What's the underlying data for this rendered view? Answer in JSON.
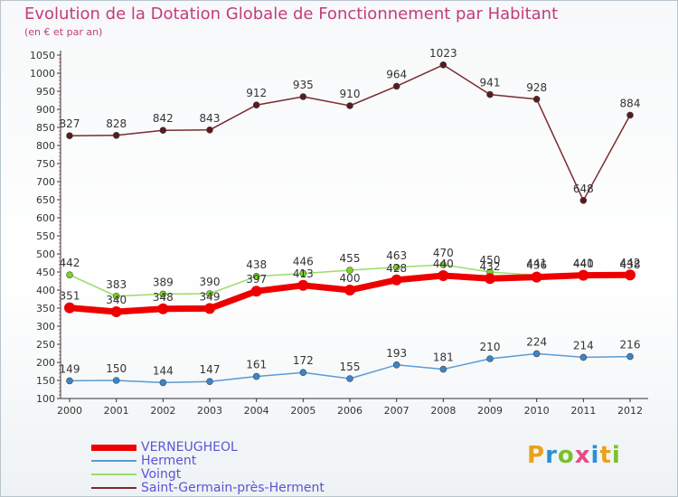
{
  "title": "Evolution de la Dotation Globale de Fonctionnement par Habitant",
  "subtitle": "(en € et par an)",
  "chart_data": {
    "type": "line",
    "x": [
      "2000",
      "2001",
      "2002",
      "2003",
      "2004",
      "2005",
      "2006",
      "2007",
      "2008",
      "2009",
      "2010",
      "2011",
      "2012"
    ],
    "ylim": [
      100,
      1050
    ],
    "yticks": [
      100,
      150,
      200,
      250,
      300,
      350,
      400,
      450,
      500,
      550,
      600,
      650,
      700,
      750,
      800,
      850,
      900,
      950,
      1000,
      1050
    ],
    "grid": false,
    "legend_position": "bottom-left",
    "series": [
      {
        "name": "VERNEUGHEOL",
        "color": "#ee0000",
        "values": [
          351,
          340,
          348,
          349,
          397,
          413,
          400,
          428,
          440,
          432,
          436,
          441,
          442
        ]
      },
      {
        "name": "Herment",
        "color": "#5b9bd5",
        "values": [
          149,
          150,
          144,
          147,
          161,
          172,
          155,
          193,
          181,
          210,
          224,
          214,
          216
        ]
      },
      {
        "name": "Voingt",
        "color": "#99dd66",
        "values": [
          442,
          383,
          389,
          390,
          438,
          446,
          455,
          463,
          470,
          450,
          441,
          440,
          438
        ]
      },
      {
        "name": "Saint-Germain-près-Herment",
        "color": "#7b2b2f",
        "values": [
          827,
          828,
          842,
          843,
          912,
          935,
          910,
          964,
          1023,
          941,
          928,
          648,
          884
        ]
      }
    ]
  },
  "logo": "Proxiti"
}
